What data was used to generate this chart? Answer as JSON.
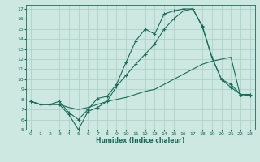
{
  "xlabel": "Humidex (Indice chaleur)",
  "bg_color": "#cce8e0",
  "grid_color": "#aacec6",
  "line_color": "#1a6b5a",
  "xlim": [
    -0.5,
    23.5
  ],
  "ylim": [
    5,
    17.4
  ],
  "xticks": [
    0,
    1,
    2,
    3,
    4,
    5,
    6,
    7,
    8,
    9,
    10,
    11,
    12,
    13,
    14,
    15,
    16,
    17,
    18,
    19,
    20,
    21,
    22,
    23
  ],
  "yticks": [
    5,
    6,
    7,
    8,
    9,
    10,
    11,
    12,
    13,
    14,
    15,
    16,
    17
  ],
  "line1_x": [
    0,
    1,
    2,
    3,
    4,
    5,
    6,
    7,
    8,
    9,
    10,
    11,
    12,
    13,
    14,
    15,
    16,
    17,
    18,
    19,
    20,
    21,
    22,
    23
  ],
  "line1_y": [
    7.8,
    7.5,
    7.5,
    7.8,
    6.7,
    6.0,
    7.0,
    8.1,
    8.3,
    9.5,
    11.7,
    13.8,
    15.0,
    14.5,
    16.5,
    16.8,
    17.0,
    17.0,
    15.3,
    12.2,
    10.0,
    9.2,
    8.5,
    8.5
  ],
  "line2_x": [
    0,
    1,
    2,
    3,
    4,
    5,
    6,
    7,
    8,
    9,
    10,
    11,
    12,
    13,
    14,
    15,
    16,
    17,
    18,
    19,
    20,
    21,
    22,
    23
  ],
  "line2_y": [
    7.8,
    7.5,
    7.5,
    7.5,
    6.5,
    5.0,
    6.8,
    7.2,
    7.8,
    9.3,
    10.4,
    11.5,
    12.5,
    13.5,
    15.0,
    16.0,
    16.8,
    17.0,
    15.2,
    12.2,
    10.0,
    9.5,
    8.5,
    8.4
  ],
  "line3_x": [
    0,
    1,
    2,
    3,
    4,
    5,
    6,
    7,
    8,
    9,
    10,
    11,
    12,
    13,
    14,
    15,
    16,
    17,
    18,
    19,
    20,
    21,
    22,
    23
  ],
  "line3_y": [
    7.8,
    7.5,
    7.5,
    7.5,
    7.2,
    7.0,
    7.2,
    7.5,
    7.8,
    8.0,
    8.2,
    8.5,
    8.8,
    9.0,
    9.5,
    10.0,
    10.5,
    11.0,
    11.5,
    11.8,
    12.0,
    12.2,
    8.3,
    8.5
  ]
}
